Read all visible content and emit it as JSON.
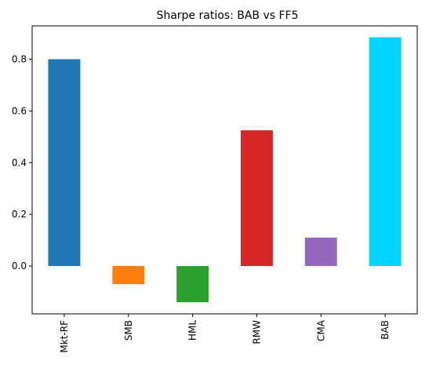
{
  "chart_data": {
    "type": "bar",
    "title": "Sharpe ratios: BAB vs FF5",
    "categories": [
      "Mkt-RF",
      "SMB",
      "HML",
      "RMW",
      "CMA",
      "BAB"
    ],
    "values": [
      0.8,
      -0.07,
      -0.14,
      0.525,
      0.11,
      0.885
    ],
    "colors": [
      "#1f77b4",
      "#ff7f0e",
      "#2ca02c",
      "#d62728",
      "#9467bd",
      "#00d5ff"
    ],
    "yticks": [
      0.0,
      0.2,
      0.4,
      0.6,
      0.8
    ],
    "ytick_labels": [
      "0.0",
      "0.2",
      "0.4",
      "0.6",
      "0.8"
    ],
    "ylim": [
      -0.185,
      0.929
    ],
    "xlabel": "",
    "ylabel": "",
    "grid": false,
    "legend": false
  }
}
